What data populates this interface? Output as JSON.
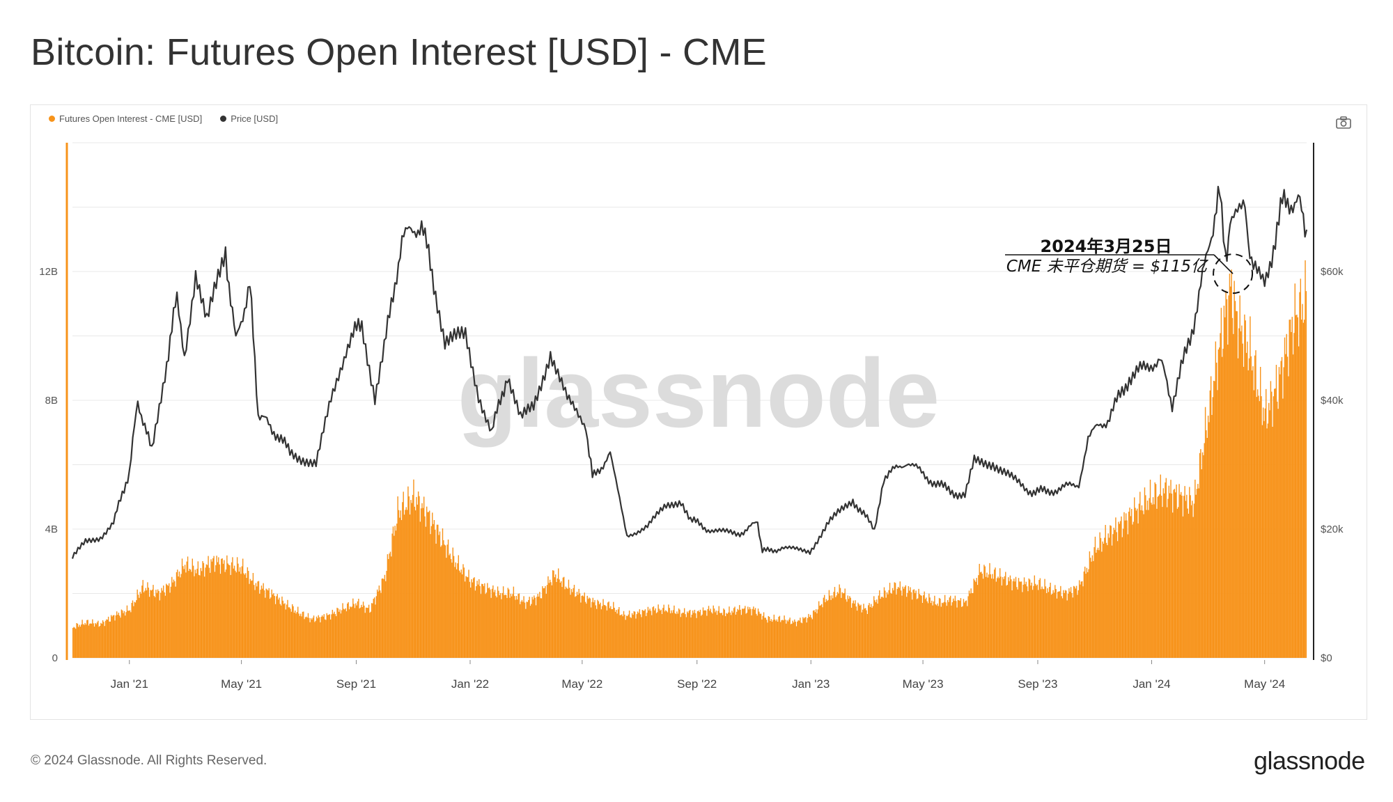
{
  "title": "Bitcoin: Futures Open Interest [USD] - CME",
  "footer": {
    "copyright": "© 2024 Glassnode. All Rights Reserved.",
    "logo": "glassnode"
  },
  "watermark": "glassnode",
  "legend": [
    {
      "label": "Futures Open Interest - CME [USD]",
      "color": "#f7931a"
    },
    {
      "label": "Price [USD]",
      "color": "#333333"
    }
  ],
  "icons": {
    "camera": "camera-icon"
  },
  "colors": {
    "oi": "#f7931a",
    "price": "#333333",
    "grid": "#e8e8e8",
    "axis_left": "#f7931a",
    "axis_right": "#222222"
  },
  "annotation": {
    "line1": "2024年3月25日",
    "line2": "CME 未平仓期货 = $115亿",
    "date": "2024-03-25"
  },
  "chart_data": {
    "type": "bar",
    "title": "Bitcoin: Futures Open Interest [USD] - CME",
    "x_ticks": [
      "Jan '21",
      "May '21",
      "Sep '21",
      "Jan '22",
      "May '22",
      "Sep '22",
      "Jan '23",
      "May '23",
      "Sep '23",
      "Jan '24",
      "May '24"
    ],
    "x_range": [
      "2020-11-01",
      "2024-06-15"
    ],
    "y_left": {
      "ticks": [
        "0",
        "4B",
        "8B",
        "12B"
      ],
      "tick_values": [
        0,
        4000000000,
        8000000000,
        12000000000
      ],
      "range": [
        0,
        16000000000
      ]
    },
    "y_right": {
      "ticks": [
        "$0",
        "$20k",
        "$40k",
        "$60k"
      ],
      "tick_values": [
        0,
        20000,
        40000,
        60000
      ],
      "range": [
        0,
        80000
      ]
    },
    "grid": true,
    "legend_position": "top-left",
    "series": [
      {
        "name": "Futures Open Interest - CME [USD]",
        "type": "bar",
        "color": "#f7931a",
        "points": [
          [
            "2020-11-01",
            950000000.0
          ],
          [
            "2020-11-15",
            1100000000.0
          ],
          [
            "2020-12-01",
            1050000000.0
          ],
          [
            "2020-12-15",
            1300000000.0
          ],
          [
            "2021-01-01",
            1500000000.0
          ],
          [
            "2021-01-15",
            2200000000.0
          ],
          [
            "2021-02-01",
            2000000000.0
          ],
          [
            "2021-02-15",
            2300000000.0
          ],
          [
            "2021-03-01",
            2900000000.0
          ],
          [
            "2021-03-15",
            2700000000.0
          ],
          [
            "2021-04-01",
            3000000000.0
          ],
          [
            "2021-04-15",
            2900000000.0
          ],
          [
            "2021-05-01",
            2800000000.0
          ],
          [
            "2021-05-15",
            2300000000.0
          ],
          [
            "2021-06-01",
            2000000000.0
          ],
          [
            "2021-06-15",
            1700000000.0
          ],
          [
            "2021-07-01",
            1400000000.0
          ],
          [
            "2021-07-15",
            1200000000.0
          ],
          [
            "2021-08-01",
            1300000000.0
          ],
          [
            "2021-08-15",
            1500000000.0
          ],
          [
            "2021-09-01",
            1700000000.0
          ],
          [
            "2021-09-15",
            1500000000.0
          ],
          [
            "2021-10-01",
            2500000000.0
          ],
          [
            "2021-10-15",
            4500000000.0
          ],
          [
            "2021-11-01",
            5000000000.0
          ],
          [
            "2021-11-15",
            4500000000.0
          ],
          [
            "2021-12-01",
            3700000000.0
          ],
          [
            "2021-12-15",
            3000000000.0
          ],
          [
            "2022-01-01",
            2400000000.0
          ],
          [
            "2022-01-15",
            2200000000.0
          ],
          [
            "2022-02-01",
            2000000000.0
          ],
          [
            "2022-02-15",
            2000000000.0
          ],
          [
            "2022-03-01",
            1700000000.0
          ],
          [
            "2022-03-15",
            1900000000.0
          ],
          [
            "2022-04-01",
            2600000000.0
          ],
          [
            "2022-04-15",
            2200000000.0
          ],
          [
            "2022-05-01",
            1900000000.0
          ],
          [
            "2022-05-15",
            1700000000.0
          ],
          [
            "2022-06-01",
            1600000000.0
          ],
          [
            "2022-06-15",
            1300000000.0
          ],
          [
            "2022-07-01",
            1400000000.0
          ],
          [
            "2022-07-15",
            1500000000.0
          ],
          [
            "2022-08-01",
            1500000000.0
          ],
          [
            "2022-08-15",
            1400000000.0
          ],
          [
            "2022-09-01",
            1400000000.0
          ],
          [
            "2022-09-15",
            1500000000.0
          ],
          [
            "2022-10-01",
            1400000000.0
          ],
          [
            "2022-10-15",
            1500000000.0
          ],
          [
            "2022-11-01",
            1500000000.0
          ],
          [
            "2022-11-15",
            1200000000.0
          ],
          [
            "2022-12-01",
            1200000000.0
          ],
          [
            "2022-12-15",
            1100000000.0
          ],
          [
            "2023-01-01",
            1300000000.0
          ],
          [
            "2023-01-15",
            1800000000.0
          ],
          [
            "2023-02-01",
            2100000000.0
          ],
          [
            "2023-02-15",
            1700000000.0
          ],
          [
            "2023-03-01",
            1500000000.0
          ],
          [
            "2023-03-15",
            1900000000.0
          ],
          [
            "2023-04-01",
            2200000000.0
          ],
          [
            "2023-04-15",
            2100000000.0
          ],
          [
            "2023-05-01",
            1900000000.0
          ],
          [
            "2023-05-15",
            1700000000.0
          ],
          [
            "2023-06-01",
            1800000000.0
          ],
          [
            "2023-06-15",
            1700000000.0
          ],
          [
            "2023-07-01",
            2700000000.0
          ],
          [
            "2023-07-15",
            2600000000.0
          ],
          [
            "2023-08-01",
            2400000000.0
          ],
          [
            "2023-08-15",
            2300000000.0
          ],
          [
            "2023-09-01",
            2300000000.0
          ],
          [
            "2023-09-15",
            2100000000.0
          ],
          [
            "2023-10-01",
            2000000000.0
          ],
          [
            "2023-10-15",
            2200000000.0
          ],
          [
            "2023-11-01",
            3400000000.0
          ],
          [
            "2023-11-15",
            3800000000.0
          ],
          [
            "2023-12-01",
            4200000000.0
          ],
          [
            "2023-12-15",
            4600000000.0
          ],
          [
            "2024-01-01",
            5000000000.0
          ],
          [
            "2024-01-15",
            5200000000.0
          ],
          [
            "2024-02-01",
            5000000000.0
          ],
          [
            "2024-02-15",
            4800000000.0
          ],
          [
            "2024-03-01",
            7500000000.0
          ],
          [
            "2024-03-15",
            10000000000.0
          ],
          [
            "2024-03-25",
            11500000000.0
          ],
          [
            "2024-04-01",
            10500000000.0
          ],
          [
            "2024-04-15",
            9500000000.0
          ],
          [
            "2024-05-01",
            7500000000.0
          ],
          [
            "2024-05-15",
            8500000000.0
          ],
          [
            "2024-06-01",
            10500000000.0
          ],
          [
            "2024-06-15",
            11200000000.0
          ]
        ]
      },
      {
        "name": "Price [USD]",
        "type": "line",
        "color": "#333333",
        "axis": "right",
        "points": [
          [
            "2020-11-01",
            15500
          ],
          [
            "2020-11-15",
            18000
          ],
          [
            "2020-12-01",
            18800
          ],
          [
            "2020-12-15",
            21000
          ],
          [
            "2021-01-01",
            29000
          ],
          [
            "2021-01-10",
            40000
          ],
          [
            "2021-01-25",
            32000
          ],
          [
            "2021-02-10",
            46000
          ],
          [
            "2021-02-21",
            56000
          ],
          [
            "2021-03-01",
            47000
          ],
          [
            "2021-03-13",
            60000
          ],
          [
            "2021-03-25",
            52000
          ],
          [
            "2021-04-14",
            63000
          ],
          [
            "2021-04-25",
            49000
          ],
          [
            "2021-05-10",
            58000
          ],
          [
            "2021-05-19",
            38000
          ],
          [
            "2021-06-01",
            36000
          ],
          [
            "2021-06-22",
            32000
          ],
          [
            "2021-07-20",
            30000
          ],
          [
            "2021-08-05",
            40000
          ],
          [
            "2021-08-23",
            49000
          ],
          [
            "2021-09-07",
            52000
          ],
          [
            "2021-09-21",
            40500
          ],
          [
            "2021-10-01",
            48000
          ],
          [
            "2021-10-20",
            65000
          ],
          [
            "2021-11-10",
            67500
          ],
          [
            "2021-11-25",
            57000
          ],
          [
            "2021-12-05",
            49000
          ],
          [
            "2021-12-27",
            50000
          ],
          [
            "2022-01-10",
            41000
          ],
          [
            "2022-01-24",
            35000
          ],
          [
            "2022-02-10",
            44000
          ],
          [
            "2022-02-24",
            37000
          ],
          [
            "2022-03-10",
            39000
          ],
          [
            "2022-03-28",
            47500
          ],
          [
            "2022-04-15",
            40000
          ],
          [
            "2022-05-05",
            36000
          ],
          [
            "2022-05-12",
            28000
          ],
          [
            "2022-05-31",
            31500
          ],
          [
            "2022-06-18",
            19000
          ],
          [
            "2022-07-10",
            20500
          ],
          [
            "2022-07-30",
            23500
          ],
          [
            "2022-08-15",
            24500
          ],
          [
            "2022-08-25",
            21500
          ],
          [
            "2022-09-15",
            19800
          ],
          [
            "2022-10-15",
            19200
          ],
          [
            "2022-11-05",
            21000
          ],
          [
            "2022-11-10",
            16500
          ],
          [
            "2022-12-01",
            17000
          ],
          [
            "2022-12-31",
            16600
          ],
          [
            "2023-01-20",
            21000
          ],
          [
            "2023-02-15",
            24500
          ],
          [
            "2023-03-10",
            20000
          ],
          [
            "2023-03-20",
            28000
          ],
          [
            "2023-04-14",
            30500
          ],
          [
            "2023-05-15",
            27000
          ],
          [
            "2023-06-15",
            25000
          ],
          [
            "2023-06-25",
            30500
          ],
          [
            "2023-07-15",
            30300
          ],
          [
            "2023-08-20",
            26000
          ],
          [
            "2023-09-10",
            25800
          ],
          [
            "2023-10-15",
            27000
          ],
          [
            "2023-10-25",
            34500
          ],
          [
            "2023-11-15",
            37000
          ],
          [
            "2023-12-08",
            43500
          ],
          [
            "2024-01-10",
            46500
          ],
          [
            "2024-01-23",
            39500
          ],
          [
            "2024-02-15",
            52000
          ],
          [
            "2024-03-05",
            66000
          ],
          [
            "2024-03-14",
            72000
          ],
          [
            "2024-03-20",
            62000
          ],
          [
            "2024-03-25",
            67000
          ],
          [
            "2024-04-10",
            70000
          ],
          [
            "2024-04-17",
            61000
          ],
          [
            "2024-05-01",
            57500
          ],
          [
            "2024-05-20",
            70500
          ],
          [
            "2024-06-06",
            71000
          ],
          [
            "2024-06-15",
            66500
          ]
        ]
      }
    ]
  }
}
